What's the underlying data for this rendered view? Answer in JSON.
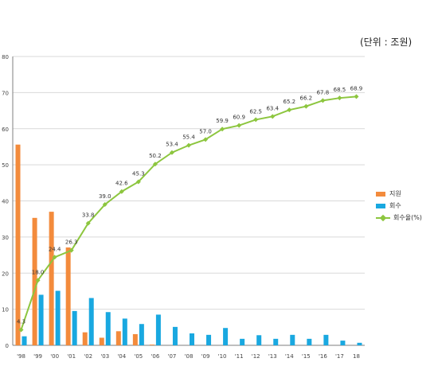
{
  "unit_label": "(단위 : 조원)",
  "legend": {
    "support": "지원",
    "recovery": "회수",
    "rate": "회수율(%)"
  },
  "colors": {
    "support": "#f38b3c",
    "recovery": "#19a8e0",
    "rate": "#8dc63f",
    "grid": "#d9d9d9",
    "axis": "#7f7f7f"
  },
  "chart_data": {
    "type": "bar",
    "categories": [
      "'98",
      "'99",
      "'00",
      "'01",
      "'02",
      "'03",
      "'04",
      "'05",
      "'06",
      "'07",
      "'08",
      "'09",
      "'10",
      "'11",
      "'12",
      "'13",
      "'14",
      "'15",
      "'16",
      "'17",
      "18"
    ],
    "ylim": [
      0,
      80
    ],
    "yticks": [
      0,
      10,
      20,
      30,
      40,
      50,
      60,
      70,
      80
    ],
    "grid": true,
    "legend_position": "right",
    "series": [
      {
        "name": "지원",
        "type": "bar",
        "values": [
          55.6,
          35.3,
          37.0,
          27.1,
          3.6,
          2.1,
          3.9,
          3.1,
          0.2,
          0,
          0,
          0,
          0,
          0,
          0,
          0,
          0,
          0,
          0,
          0,
          0
        ]
      },
      {
        "name": "회수",
        "type": "bar",
        "values": [
          2.5,
          14.0,
          15.1,
          9.5,
          13.1,
          9.2,
          7.4,
          5.9,
          8.5,
          5.1,
          3.3,
          2.9,
          4.8,
          1.8,
          2.8,
          1.8,
          2.9,
          1.8,
          2.9,
          1.3,
          0.7
        ]
      },
      {
        "name": "회수율(%)",
        "type": "line",
        "values": [
          4.3,
          18.0,
          24.4,
          26.3,
          33.8,
          39.0,
          42.6,
          45.3,
          50.2,
          53.4,
          55.4,
          57.0,
          59.9,
          60.9,
          62.5,
          63.4,
          65.2,
          66.2,
          67.8,
          68.5,
          68.9
        ],
        "labels": [
          "4.3",
          "18.0",
          "24.4",
          "26.3",
          "33.8",
          "39.0",
          "42.6",
          "45.3",
          "50.2",
          "53.4",
          "55.4",
          "57.0",
          "59.9",
          "60.9",
          "62.5",
          "63.4",
          "65.2",
          "66.2",
          "67.8",
          "68.5",
          "68.9"
        ]
      }
    ]
  }
}
